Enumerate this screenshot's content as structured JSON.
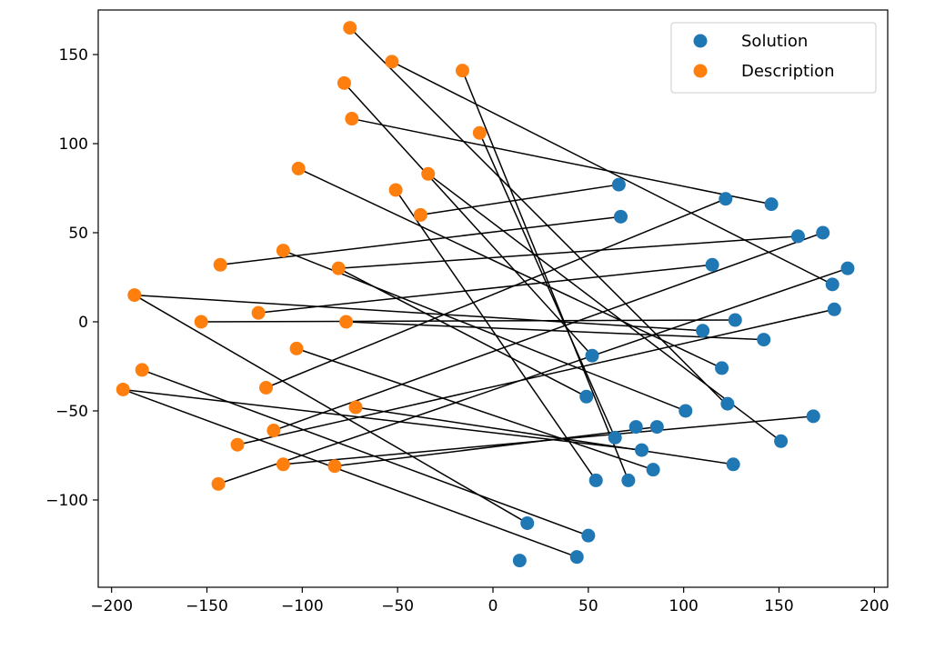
{
  "chart_data": {
    "type": "scatter",
    "xlim": [
      -207,
      207
    ],
    "ylim": [
      -149,
      175
    ],
    "xticks": [
      -200,
      -150,
      -100,
      -50,
      0,
      50,
      100,
      150,
      200
    ],
    "xtick_labels": [
      "−200",
      "−150",
      "−100",
      "−50",
      "0",
      "50",
      "100",
      "150",
      "200"
    ],
    "yticks": [
      -100,
      -50,
      0,
      50,
      100,
      150
    ],
    "ytick_labels": [
      "−100",
      "−50",
      "0",
      "50",
      "100",
      "150"
    ],
    "grid": false,
    "legend_position": "top-right",
    "series": [
      {
        "name": "Solution",
        "color": "#1f77b4",
        "points": [
          [
            66,
            77
          ],
          [
            122,
            69
          ],
          [
            146,
            66
          ],
          [
            67,
            59
          ],
          [
            160,
            48
          ],
          [
            173,
            50
          ],
          [
            115,
            32
          ],
          [
            186,
            30
          ],
          [
            178,
            21
          ],
          [
            179,
            7
          ],
          [
            127,
            1
          ],
          [
            110,
            -5
          ],
          [
            142,
            -10
          ],
          [
            52,
            -19
          ],
          [
            120,
            -26
          ],
          [
            49,
            -42
          ],
          [
            123,
            -46
          ],
          [
            101,
            -50
          ],
          [
            151,
            -67
          ],
          [
            168,
            -53
          ],
          [
            75,
            -59
          ],
          [
            86,
            -59
          ],
          [
            64,
            -65
          ],
          [
            78,
            -72
          ],
          [
            84,
            -83
          ],
          [
            126,
            -80
          ],
          [
            54,
            -89
          ],
          [
            71,
            -89
          ],
          [
            18,
            -113
          ],
          [
            50,
            -120
          ],
          [
            44,
            -132
          ],
          [
            14,
            -134
          ]
        ]
      },
      {
        "name": "Description",
        "color": "#ff7f0e",
        "points": [
          [
            -75,
            165
          ],
          [
            -53,
            146
          ],
          [
            -16,
            141
          ],
          [
            -78,
            134
          ],
          [
            -74,
            114
          ],
          [
            -7,
            106
          ],
          [
            -102,
            86
          ],
          [
            -34,
            83
          ],
          [
            -51,
            74
          ],
          [
            -38,
            60
          ],
          [
            -143,
            32
          ],
          [
            -110,
            40
          ],
          [
            -81,
            30
          ],
          [
            -188,
            15
          ],
          [
            -123,
            5
          ],
          [
            -153,
            0
          ],
          [
            -77,
            0
          ],
          [
            -103,
            -15
          ],
          [
            -184,
            -27
          ],
          [
            -194,
            -38
          ],
          [
            -119,
            -37
          ],
          [
            -72,
            -48
          ],
          [
            -115,
            -61
          ],
          [
            -134,
            -69
          ],
          [
            -110,
            -80
          ],
          [
            -83,
            -81
          ],
          [
            -144,
            -91
          ]
        ]
      }
    ],
    "connections": [
      [
        [
          -75,
          165
        ],
        [
          122,
          -46
        ]
      ],
      [
        [
          -53,
          146
        ],
        [
          178,
          21
        ]
      ],
      [
        [
          -16,
          141
        ],
        [
          71,
          -89
        ]
      ],
      [
        [
          -7,
          106
        ],
        [
          64,
          -65
        ]
      ],
      [
        [
          -74,
          114
        ],
        [
          146,
          66
        ]
      ],
      [
        [
          -34,
          83
        ],
        [
          151,
          -67
        ]
      ],
      [
        [
          -102,
          86
        ],
        [
          120,
          -26
        ]
      ],
      [
        [
          -38,
          60
        ],
        [
          66,
          77
        ]
      ],
      [
        [
          -143,
          32
        ],
        [
          67,
          59
        ]
      ],
      [
        [
          -81,
          30
        ],
        [
          160,
          48
        ]
      ],
      [
        [
          -123,
          5
        ],
        [
          115,
          32
        ]
      ],
      [
        [
          -110,
          40
        ],
        [
          101,
          -50
        ]
      ],
      [
        [
          -153,
          0
        ],
        [
          127,
          1
        ]
      ],
      [
        [
          -77,
          0
        ],
        [
          142,
          -10
        ]
      ],
      [
        [
          -188,
          15
        ],
        [
          110,
          -5
        ]
      ],
      [
        [
          -188,
          15
        ],
        [
          18,
          -113
        ]
      ],
      [
        [
          -103,
          -15
        ],
        [
          84,
          -83
        ]
      ],
      [
        [
          -184,
          -27
        ],
        [
          50,
          -120
        ]
      ],
      [
        [
          -194,
          -38
        ],
        [
          44,
          -132
        ]
      ],
      [
        [
          -194,
          -38
        ],
        [
          78,
          -72
        ]
      ],
      [
        [
          -119,
          -37
        ],
        [
          122,
          69
        ]
      ],
      [
        [
          -115,
          -61
        ],
        [
          173,
          50
        ]
      ],
      [
        [
          -134,
          -69
        ],
        [
          179,
          7
        ]
      ],
      [
        [
          -110,
          -80
        ],
        [
          168,
          -53
        ]
      ],
      [
        [
          -83,
          -81
        ],
        [
          86,
          -59
        ]
      ],
      [
        [
          -144,
          -91
        ],
        [
          186,
          30
        ]
      ],
      [
        [
          -72,
          -48
        ],
        [
          126,
          -80
        ]
      ],
      [
        [
          -51,
          74
        ],
        [
          54,
          -89
        ]
      ],
      [
        [
          -78,
          134
        ],
        [
          52,
          -19
        ]
      ],
      [
        [
          -81,
          30
        ],
        [
          49,
          -42
        ]
      ]
    ],
    "connection_color": "#000000"
  }
}
